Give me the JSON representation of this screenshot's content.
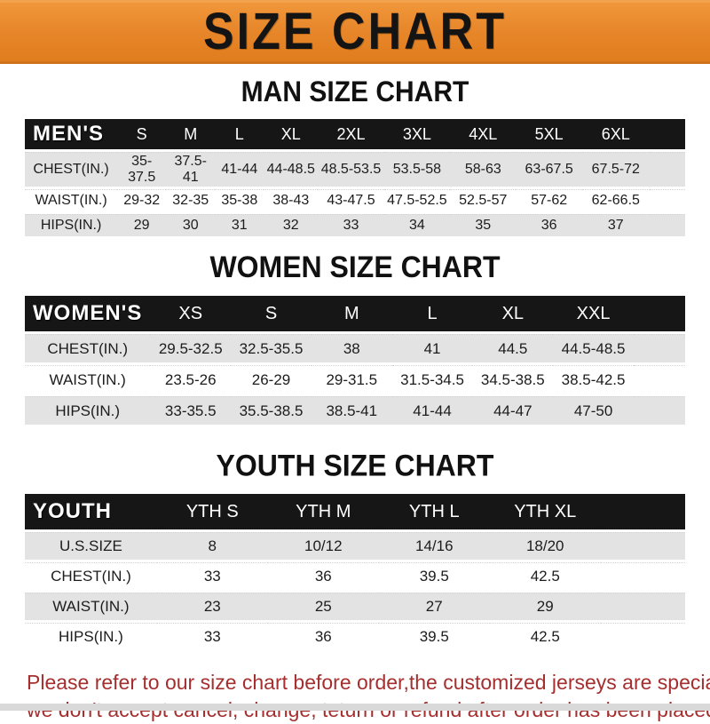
{
  "banner": {
    "title": "SIZE CHART"
  },
  "colors": {
    "banner_orange": "#E8872B",
    "band_black": "#161616",
    "stripe_gray": "#E3E3E3",
    "footer_red": "#A52F2F"
  },
  "sections": [
    {
      "title": "MAN SIZE CHART",
      "header_label": "MEN'S",
      "columns": [
        "S",
        "M",
        "L",
        "XL",
        "2XL",
        "3XL",
        "4XL",
        "5XL",
        "6XL"
      ],
      "rows": [
        {
          "label": "CHEST(IN.)",
          "values": [
            "35-37.5",
            "37.5-41",
            "41-44",
            "44-48.5",
            "48.5-53.5",
            "53.5-58",
            "58-63",
            "63-67.5",
            "67.5-72"
          ]
        },
        {
          "label": "WAIST(IN.)",
          "values": [
            "29-32",
            "32-35",
            "35-38",
            "38-43",
            "43-47.5",
            "47.5-52.5",
            "52.5-57",
            "57-62",
            "62-66.5"
          ]
        },
        {
          "label": "HIPS(IN.)",
          "values": [
            "29",
            "30",
            "31",
            "32",
            "33",
            "34",
            "35",
            "36",
            "37"
          ]
        }
      ]
    },
    {
      "title": "WOMEN SIZE CHART",
      "header_label": "WOMEN'S",
      "columns": [
        "XS",
        "S",
        "M",
        "L",
        "XL",
        "XXL"
      ],
      "rows": [
        {
          "label": "CHEST(IN.)",
          "values": [
            "29.5-32.5",
            "32.5-35.5",
            "38",
            "41",
            "44.5",
            "44.5-48.5"
          ]
        },
        {
          "label": "WAIST(IN.)",
          "values": [
            "23.5-26",
            "26-29",
            "29-31.5",
            "31.5-34.5",
            "34.5-38.5",
            "38.5-42.5"
          ]
        },
        {
          "label": "HIPS(IN.)",
          "values": [
            "33-35.5",
            "35.5-38.5",
            "38.5-41",
            "41-44",
            "44-47",
            "47-50"
          ]
        }
      ]
    },
    {
      "title": "YOUTH SIZE CHART",
      "header_label": "YOUTH",
      "columns": [
        "YTH S",
        "YTH M",
        "YTH L",
        "YTH XL"
      ],
      "rows": [
        {
          "label": "U.S.SIZE",
          "values": [
            "8",
            "10/12",
            "14/16",
            "18/20"
          ]
        },
        {
          "label": "CHEST(IN.)",
          "values": [
            "33",
            "36",
            "39.5",
            "42.5"
          ]
        },
        {
          "label": "WAIST(IN.)",
          "values": [
            "23",
            "25",
            "27",
            "29"
          ]
        },
        {
          "label": "HIPS(IN.)",
          "values": [
            "33",
            "36",
            "39.5",
            "42.5"
          ]
        }
      ]
    }
  ],
  "footer": {
    "line1": "Please refer to our size chart before order,the customized jerseys are special products,",
    "line2": "we don't accept cancel, change, teturn or refund after order has been placed!"
  }
}
